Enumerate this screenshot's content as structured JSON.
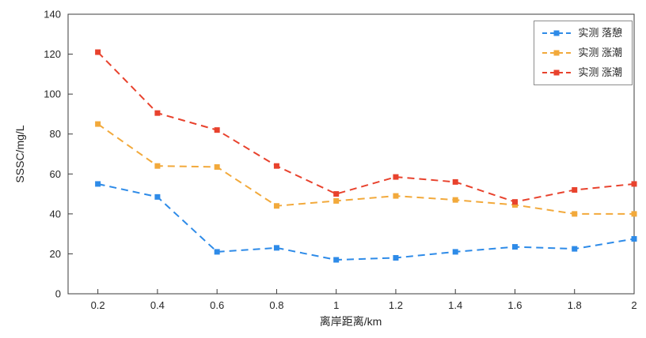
{
  "chart_data": {
    "type": "line",
    "x": [
      0.2,
      0.4,
      0.6,
      0.8,
      1.0,
      1.2,
      1.4,
      1.6,
      1.8,
      2.0
    ],
    "series": [
      {
        "name": "实测 落憩",
        "color": "#2E8BE8",
        "values": [
          55,
          48.5,
          21,
          23,
          17,
          18,
          21,
          23.5,
          22.5,
          27.5
        ]
      },
      {
        "name": "实测 涨潮",
        "color": "#F2A93B",
        "values": [
          85,
          64,
          63.5,
          44,
          46.5,
          49,
          47,
          44.5,
          40,
          40
        ]
      },
      {
        "name": "实测 涨潮",
        "color": "#E8422D",
        "values": [
          121,
          90.5,
          82,
          64,
          50,
          58.5,
          56,
          46,
          52,
          55
        ]
      }
    ],
    "title": "",
    "xlabel": "离岸距离/km",
    "ylabel": "SSSC/mg/L",
    "xlim": [
      0.1,
      2.0
    ],
    "ylim": [
      0,
      140
    ],
    "xticks": [
      0.2,
      0.4,
      0.6,
      0.8,
      1.0,
      1.2,
      1.4,
      1.6,
      1.8,
      2.0
    ],
    "xtick_labels": [
      "0.2",
      "0.4",
      "0.6",
      "0.8",
      "1",
      "1.2",
      "1.4",
      "1.6",
      "1.8",
      "2"
    ],
    "yticks": [
      0,
      20,
      40,
      60,
      80,
      100,
      120,
      140
    ],
    "ytick_labels": [
      "0",
      "20",
      "40",
      "60",
      "80",
      "100",
      "120",
      "140"
    ],
    "grid": false,
    "legend_position": "top-right",
    "axis_color": "#3b3b3b",
    "line_style": "dashed",
    "marker": "square"
  }
}
